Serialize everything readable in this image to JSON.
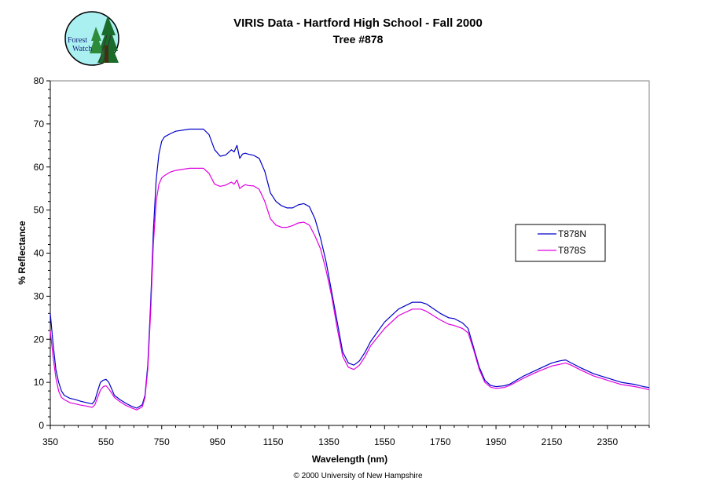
{
  "logo": {
    "line1": "Forest",
    "line2": "Watch"
  },
  "copyright": "© 2000 University of New Hampshire",
  "chart_data": {
    "type": "line",
    "title": "VIRIS Data - Hartford High School - Fall 2000",
    "subtitle": "Tree #878",
    "xlabel": "Wavelength (nm)",
    "ylabel": "% Reflectance",
    "xlim": [
      350,
      2500
    ],
    "ylim": [
      0,
      80
    ],
    "xticks": [
      350,
      550,
      750,
      950,
      1150,
      1350,
      1550,
      1750,
      1950,
      2150,
      2350
    ],
    "yticks": [
      0,
      10,
      20,
      30,
      40,
      50,
      60,
      70,
      80
    ],
    "grid": false,
    "legend": "right",
    "series": [
      {
        "name": "T878N",
        "color": "#0000c8",
        "x": [
          350,
          360,
          370,
          380,
          390,
          400,
          420,
          440,
          460,
          480,
          500,
          510,
          520,
          530,
          540,
          550,
          560,
          570,
          580,
          600,
          620,
          640,
          660,
          680,
          690,
          700,
          710,
          720,
          730,
          740,
          750,
          760,
          780,
          800,
          850,
          900,
          920,
          940,
          960,
          980,
          1000,
          1010,
          1020,
          1030,
          1040,
          1050,
          1060,
          1080,
          1100,
          1120,
          1140,
          1160,
          1180,
          1200,
          1220,
          1240,
          1260,
          1280,
          1300,
          1320,
          1340,
          1360,
          1380,
          1400,
          1420,
          1440,
          1460,
          1480,
          1500,
          1550,
          1600,
          1650,
          1680,
          1700,
          1750,
          1780,
          1800,
          1830,
          1850,
          1870,
          1890,
          1910,
          1930,
          1950,
          1980,
          2000,
          2050,
          2100,
          2150,
          2180,
          2200,
          2220,
          2250,
          2300,
          2350,
          2400,
          2450,
          2480,
          2500
        ],
        "values": [
          26,
          19,
          13,
          10,
          8,
          7,
          6.3,
          6,
          5.6,
          5.3,
          5,
          5.8,
          8,
          10,
          10.5,
          10.7,
          10,
          8.5,
          7,
          6,
          5.2,
          4.5,
          4,
          4.8,
          7,
          14,
          28,
          45,
          57,
          63,
          66,
          67,
          67.7,
          68.3,
          68.8,
          68.8,
          67.5,
          64,
          62.5,
          62.8,
          64,
          63.5,
          65,
          62,
          63,
          63.2,
          63,
          62.7,
          62,
          59,
          54,
          52,
          51,
          50.5,
          50.5,
          51.2,
          51.5,
          50.8,
          48,
          43.5,
          38,
          31,
          24,
          17,
          14.5,
          14,
          15,
          17,
          19.5,
          24,
          27,
          28.6,
          28.6,
          28.2,
          26,
          25,
          24.8,
          23.8,
          22.5,
          18,
          13.5,
          10.5,
          9.3,
          9,
          9.2,
          9.6,
          11.5,
          13,
          14.5,
          15,
          15.2,
          14.5,
          13.5,
          12,
          11,
          10,
          9.5,
          9,
          8.8
        ]
      },
      {
        "name": "T878S",
        "color": "#e000e0",
        "x": [
          350,
          360,
          370,
          380,
          390,
          400,
          420,
          440,
          460,
          480,
          500,
          510,
          520,
          530,
          540,
          550,
          560,
          570,
          580,
          600,
          620,
          640,
          660,
          680,
          690,
          700,
          710,
          720,
          730,
          740,
          750,
          760,
          780,
          800,
          850,
          900,
          920,
          940,
          960,
          980,
          1000,
          1010,
          1020,
          1030,
          1040,
          1050,
          1060,
          1080,
          1100,
          1120,
          1140,
          1160,
          1180,
          1200,
          1220,
          1240,
          1260,
          1280,
          1300,
          1320,
          1340,
          1360,
          1380,
          1400,
          1420,
          1440,
          1460,
          1480,
          1500,
          1550,
          1600,
          1650,
          1680,
          1700,
          1750,
          1780,
          1800,
          1830,
          1850,
          1870,
          1890,
          1910,
          1930,
          1950,
          1980,
          2000,
          2050,
          2100,
          2150,
          2180,
          2200,
          2220,
          2250,
          2300,
          2350,
          2400,
          2450,
          2480,
          2500
        ],
        "values": [
          22,
          16,
          11,
          8,
          6.5,
          6,
          5.3,
          5,
          4.7,
          4.5,
          4.2,
          4.8,
          6.5,
          8.2,
          9,
          9.2,
          8.5,
          7.5,
          6.5,
          5.5,
          4.7,
          4.1,
          3.6,
          4.3,
          6.5,
          13,
          26,
          42,
          52,
          56,
          57.5,
          58,
          58.8,
          59.2,
          59.7,
          59.7,
          58.5,
          56,
          55.5,
          55.8,
          56.5,
          56,
          57,
          55,
          55.5,
          55.9,
          55.7,
          55.6,
          54.8,
          52,
          48,
          46.5,
          46,
          46,
          46.4,
          47,
          47.2,
          46.5,
          44,
          41,
          36,
          30,
          22.5,
          16,
          13.5,
          13,
          14,
          16,
          18.5,
          22.5,
          25.5,
          27,
          27,
          26.5,
          24.5,
          23.5,
          23.2,
          22.5,
          21.5,
          17.5,
          13,
          10,
          8.9,
          8.6,
          8.8,
          9.3,
          11,
          12.5,
          13.8,
          14.2,
          14.5,
          14,
          13,
          11.5,
          10.5,
          9.5,
          9,
          8.6,
          8.3
        ]
      }
    ]
  }
}
